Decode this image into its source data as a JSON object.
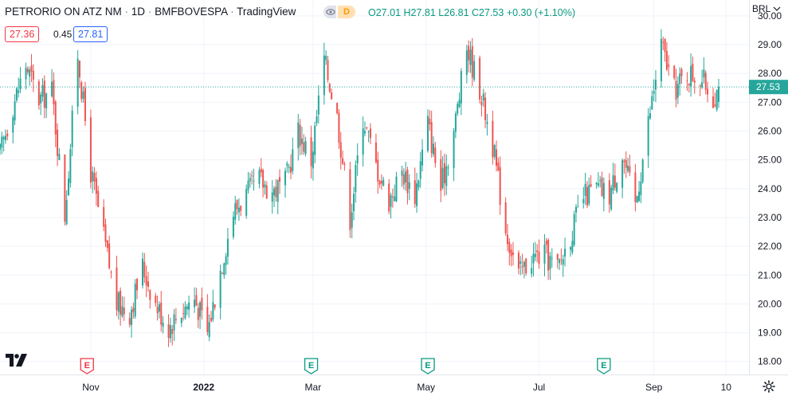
{
  "header": {
    "symbol": "PETRORIO ON ATZ NM",
    "interval": "1D",
    "exchange": "BMFBOVESPA",
    "source": "TradingView",
    "interval_badge": "D",
    "ohlc": {
      "o_label": "O",
      "o": "27.01",
      "h_label": "H",
      "h": "27.81",
      "l_label": "L",
      "l": "26.81",
      "c_label": "C",
      "c": "27.53",
      "change": "+0.30 (+1.10%)"
    }
  },
  "trade": {
    "bid": "27.36",
    "spread": "0.45",
    "ask": "27.81"
  },
  "currency": "BRL",
  "last_price_label": "27.53",
  "colors": {
    "up": "#26a69a",
    "down": "#ef5350",
    "last_line": "#26a69a",
    "grid": "#f0f3fa",
    "earnings_red": "#f23645",
    "earnings_green": "#089981"
  },
  "icons": {
    "eye": "eye-icon",
    "settings": "gear-icon",
    "logo": "tradingview-logo"
  },
  "chart_data": {
    "type": "candlestick",
    "y_ticks": [
      "30.00",
      "29.00",
      "28.00",
      "27.00",
      "26.00",
      "25.00",
      "24.00",
      "23.00",
      "22.00",
      "21.00",
      "20.00",
      "19.00",
      "18.00"
    ],
    "ylim": [
      17.55,
      30.55
    ],
    "x_ticks": [
      "Nov",
      "2022",
      "Mar",
      "May",
      "Jul",
      "Sep",
      "10"
    ],
    "last_price": 27.53,
    "earnings_markers": [
      {
        "month": "Nov",
        "letter": "E",
        "type": "past"
      },
      {
        "month": "Mar",
        "letter": "E",
        "type": "future"
      },
      {
        "month": "May",
        "letter": "E",
        "type": "future"
      },
      {
        "month": "Aug",
        "letter": "E",
        "type": "future"
      }
    ],
    "close_series_approx": {
      "start": "2021-09-13",
      "end": "2022-10-06",
      "anchor_values": [
        [
          "2021-09-13",
          25.2
        ],
        [
          "2021-09-20",
          26.9
        ],
        [
          "2021-09-27",
          28.3
        ],
        [
          "2021-10-04",
          27.1
        ],
        [
          "2021-10-11",
          27.4
        ],
        [
          "2021-10-18",
          23.1
        ],
        [
          "2021-10-25",
          28.7
        ],
        [
          "2021-11-01",
          24.6
        ],
        [
          "2021-11-08",
          22.3
        ],
        [
          "2021-11-15",
          20.0
        ],
        [
          "2021-11-22",
          19.7
        ],
        [
          "2021-11-29",
          21.3
        ],
        [
          "2021-12-06",
          20.0
        ],
        [
          "2021-12-13",
          19.2
        ],
        [
          "2021-12-20",
          19.8
        ],
        [
          "2021-12-27",
          20.2
        ],
        [
          "2022-01-03",
          19.0
        ],
        [
          "2022-01-10",
          21.2
        ],
        [
          "2022-01-17",
          23.2
        ],
        [
          "2022-01-24",
          23.8
        ],
        [
          "2022-01-31",
          24.3
        ],
        [
          "2022-02-07",
          23.9
        ],
        [
          "2022-02-14",
          24.2
        ],
        [
          "2022-02-21",
          26.0
        ],
        [
          "2022-02-28",
          25.0
        ],
        [
          "2022-03-07",
          28.5
        ],
        [
          "2022-03-14",
          26.5
        ],
        [
          "2022-03-21",
          23.0
        ],
        [
          "2022-03-28",
          26.5
        ],
        [
          "2022-04-04",
          24.8
        ],
        [
          "2022-04-11",
          23.6
        ],
        [
          "2022-04-18",
          24.6
        ],
        [
          "2022-04-25",
          23.8
        ],
        [
          "2022-05-02",
          26.3
        ],
        [
          "2022-05-09",
          24.0
        ],
        [
          "2022-05-16",
          26.0
        ],
        [
          "2022-05-23",
          28.9
        ],
        [
          "2022-05-30",
          27.5
        ],
        [
          "2022-06-06",
          25.5
        ],
        [
          "2022-06-13",
          22.6
        ],
        [
          "2022-06-20",
          21.0
        ],
        [
          "2022-06-27",
          21.6
        ],
        [
          "2022-07-04",
          21.7
        ],
        [
          "2022-07-11",
          21.2
        ],
        [
          "2022-07-18",
          22.4
        ],
        [
          "2022-07-25",
          23.7
        ],
        [
          "2022-08-01",
          24.0
        ],
        [
          "2022-08-08",
          23.8
        ],
        [
          "2022-08-15",
          25.2
        ],
        [
          "2022-08-22",
          23.4
        ],
        [
          "2022-08-29",
          26.3
        ],
        [
          "2022-09-05",
          29.0
        ],
        [
          "2022-09-12",
          27.4
        ],
        [
          "2022-09-19",
          28.0
        ],
        [
          "2022-09-26",
          27.9
        ],
        [
          "2022-10-03",
          27.2
        ],
        [
          "2022-10-06",
          27.53
        ]
      ]
    }
  }
}
